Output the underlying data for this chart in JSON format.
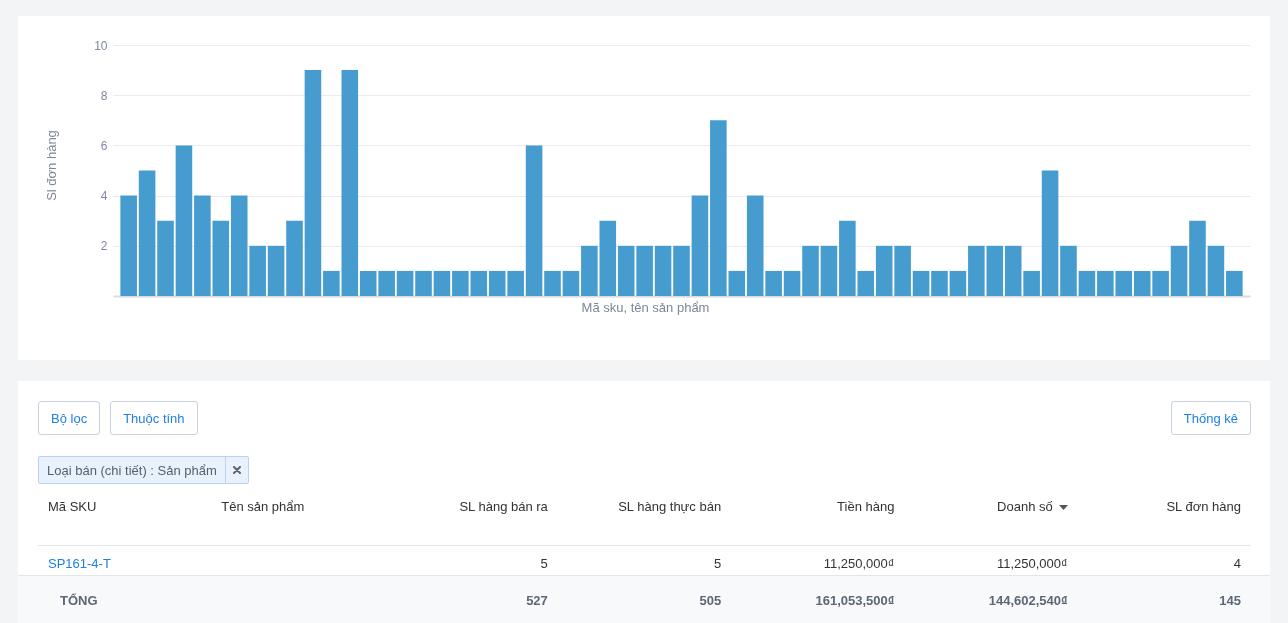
{
  "chart_data": [
    {
      "type": "bar",
      "xlabel": "Mã sku, tên sản phẩm",
      "ylabel": "Sl đơn hàng",
      "categories": [
        null,
        null,
        null,
        null,
        null,
        null,
        null,
        null,
        null,
        null,
        null,
        null,
        null,
        null,
        null,
        null,
        null,
        null,
        null,
        null,
        null,
        null,
        null,
        null,
        null,
        null,
        null,
        null,
        null,
        null,
        null,
        null,
        null,
        null,
        null,
        null,
        null,
        null,
        null,
        null,
        null,
        null,
        null,
        null,
        null,
        null,
        null,
        null,
        null,
        null,
        null,
        null,
        null,
        null,
        null,
        null,
        null,
        null,
        null,
        null,
        null
      ],
      "values": [
        4,
        5,
        3,
        6,
        4,
        3,
        4,
        2,
        2,
        3,
        9,
        1,
        9,
        1,
        1,
        1,
        1,
        1,
        1,
        1,
        1,
        1,
        6,
        1,
        1,
        2,
        3,
        2,
        2,
        2,
        2,
        4,
        7,
        1,
        4,
        1,
        1,
        2,
        2,
        3,
        1,
        2,
        2,
        1,
        1,
        1,
        2,
        2,
        2,
        1,
        5,
        2,
        1,
        1,
        1,
        1,
        1,
        2,
        3,
        2,
        1
      ],
      "color": "#479ccf",
      "ylim": [
        0,
        10
      ],
      "yticks": [
        2,
        4,
        6,
        8,
        10
      ],
      "grid": "y"
    },
    {
      "type": "other",
      "categories": [
        "Mã SKU",
        "Tên sản phẩm",
        "SL hàng bán ra",
        "SL hàng thực bán",
        "Tiền hàng",
        "Doanh số",
        "SL đơn hàng"
      ],
      "cell_labels": [
        [
          "SP161-4-T",
          null,
          "5",
          "5",
          "11,250,000₫",
          "11,250,000₫",
          "4"
        ],
        [
          "TỔNG",
          null,
          "527",
          "505",
          "161,053,500₫",
          "144,602,540₫",
          "145"
        ]
      ],
      "annotations": [
        "Bộ lọc",
        "Thuộc tính",
        "Loại bán (chi tiết) : Sản phẩm",
        "Thống kê"
      ]
    }
  ]
}
